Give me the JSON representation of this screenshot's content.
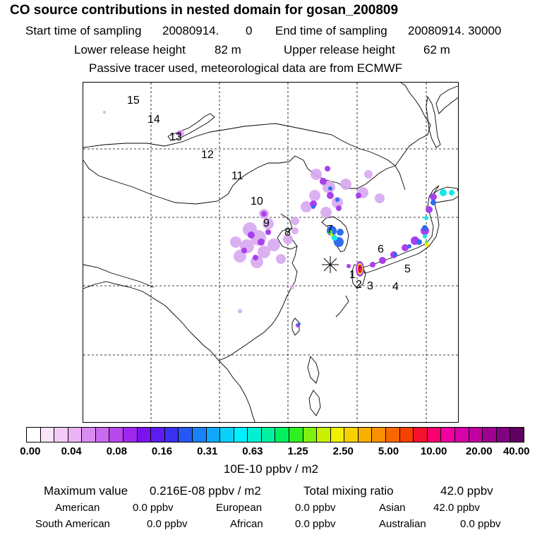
{
  "title": "CO  source contributions in nested domain for gosan_200809",
  "sampling": {
    "start_label": "Start time of sampling",
    "start_value": "20080914.",
    "start_hour": "0",
    "end_label": "End time of sampling",
    "end_value": "20080914. 30000"
  },
  "release": {
    "lower_label": "Lower release height",
    "lower_value": "82 m",
    "upper_label": "Upper release height",
    "upper_value": "62 m"
  },
  "note": "Passive tracer used, meteorological data are from ECMWF",
  "trajectory_labels": [
    "1",
    "2",
    "3",
    "4",
    "5",
    "6",
    "7",
    "8",
    "9",
    "10",
    "11",
    "12",
    "13",
    "14",
    "15"
  ],
  "colorbar": {
    "ticks": [
      "0.00",
      "0.04",
      "0.08",
      "0.16",
      "0.31",
      "0.63",
      "1.25",
      "2.50",
      "5.00",
      "10.00",
      "20.00",
      "40.00"
    ],
    "colors": [
      "#ffffff",
      "#f9e6fb",
      "#f2ccf7",
      "#eab3f3",
      "#d88cf0",
      "#c86aee",
      "#b648ee",
      "#9f28f0",
      "#7a12f0",
      "#5a1cf0",
      "#3a30f2",
      "#2656f5",
      "#1a82f8",
      "#10a8fb",
      "#0ad0fc",
      "#00f0ff",
      "#00f0d0",
      "#00f0a0",
      "#00f060",
      "#30f020",
      "#80f010",
      "#c8f000",
      "#f0f000",
      "#f8d000",
      "#f8b000",
      "#f89000",
      "#f86800",
      "#f84000",
      "#f81030",
      "#f80070",
      "#f000a0",
      "#d800a8",
      "#c000a0",
      "#a00090",
      "#800080",
      "#600060"
    ],
    "unit": "10E-10 ppbv / m2"
  },
  "summary": {
    "max_label": "Maximum value",
    "max_value": "0.216E-08 ppbv / m2",
    "total_label": "Total mixing ratio",
    "total_value": "42.0 ppbv"
  },
  "regions": [
    {
      "name": "American",
      "value": "0.0 ppbv"
    },
    {
      "name": "European",
      "value": "0.0 ppbv"
    },
    {
      "name": "Asian",
      "value": "42.0 ppbv"
    },
    {
      "name": "South American",
      "value": "0.0 ppbv"
    },
    {
      "name": "African",
      "value": "0.0 ppbv"
    },
    {
      "name": "Australian",
      "value": "0.0 ppbv"
    }
  ]
}
